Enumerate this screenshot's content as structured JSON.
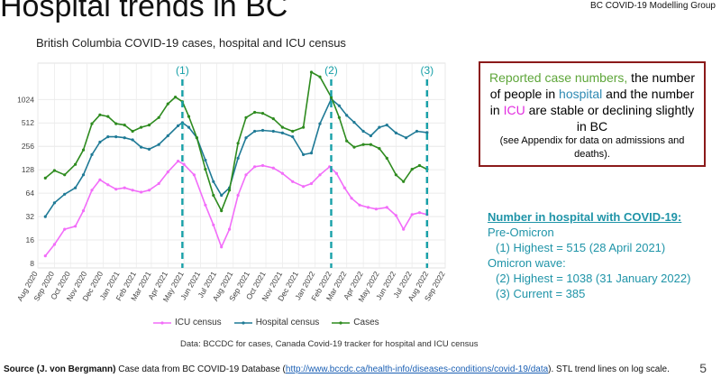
{
  "slide": {
    "title": "Hospital trends in BC",
    "group": "BC COVID-19 Modelling Group",
    "page_number": "5"
  },
  "callout": {
    "green": "Reported case numbers,",
    "t1": " the number of people in ",
    "blue": "hospital",
    "t2": " and the number in ",
    "pink": "ICU",
    "t3": " are stable or declining slightly in BC",
    "small": "(see Appendix for data on admissions and deaths).",
    "colors": {
      "green": "#5ea63a",
      "blue": "#2f8ab3",
      "pink": "#e22ee0",
      "border": "#8b1a1a"
    }
  },
  "hospital_box": {
    "heading": "Number in hospital with COVID-19:",
    "l1": "Pre-Omicron",
    "l2": "(1) Highest = 515 (28 April 2021)",
    "l3": "Omicron wave:",
    "l4": "(2) Highest = 1038 (31 January 2022)",
    "l5": "(3) Current = 385"
  },
  "caption": "Data: BCCDC for cases, Canada Covid-19 tracker for hospital and ICU census",
  "source": {
    "bold": "Source (J. von Bergmann)",
    "pre": " Case data from BC COVID-19 Database (",
    "link": "http://www.bccdc.ca/health-info/diseases-conditions/covid-19/data",
    "post": "). STL trend lines on log scale."
  },
  "chart_data": {
    "type": "line",
    "title": "British Columbia COVID-19 cases, hospital and ICU census",
    "y_scale": "log2",
    "y_ticks": [
      8,
      16,
      32,
      64,
      128,
      256,
      512,
      1024
    ],
    "ylim": [
      7,
      3000
    ],
    "x_labels": [
      "Aug 2020",
      "Sep 2020",
      "Oct 2020",
      "Nov 2020",
      "Dec 2020",
      "Jan 2021",
      "Feb 2021",
      "Mar 2021",
      "Apr 2021",
      "May 2021",
      "Jun 2021",
      "Jul 2021",
      "Aug 2021",
      "Sep 2021",
      "Oct 2021",
      "Nov 2021",
      "Dec 2021",
      "Jan 2022",
      "Feb 2022",
      "Mar 2022",
      "Apr 2022",
      "May 2022",
      "Jun 2022",
      "Jul 2022",
      "Aug 2022",
      "Sep 2022"
    ],
    "grid": true,
    "legend_position": "bottom",
    "markers": [
      {
        "label": "(1)",
        "date": "2021-04-28"
      },
      {
        "label": "(2)",
        "date": "2022-01-31"
      },
      {
        "label": "(3)",
        "date": "2022-07-29"
      }
    ],
    "series": [
      {
        "name": "ICU census",
        "color": "#f26df9",
        "values": [
          [
            "2020-08-15",
            10
          ],
          [
            "2020-09-01",
            14
          ],
          [
            "2020-09-20",
            22
          ],
          [
            "2020-10-10",
            24
          ],
          [
            "2020-10-25",
            38
          ],
          [
            "2020-11-10",
            70
          ],
          [
            "2020-11-25",
            95
          ],
          [
            "2020-12-10",
            82
          ],
          [
            "2020-12-25",
            72
          ],
          [
            "2021-01-10",
            75
          ],
          [
            "2021-01-25",
            70
          ],
          [
            "2021-02-10",
            66
          ],
          [
            "2021-02-25",
            70
          ],
          [
            "2021-03-15",
            85
          ],
          [
            "2021-04-01",
            120
          ],
          [
            "2021-04-20",
            165
          ],
          [
            "2021-05-01",
            150
          ],
          [
            "2021-05-20",
            110
          ],
          [
            "2021-06-10",
            45
          ],
          [
            "2021-06-25",
            25
          ],
          [
            "2021-07-10",
            13
          ],
          [
            "2021-07-25",
            22
          ],
          [
            "2021-08-10",
            60
          ],
          [
            "2021-08-25",
            110
          ],
          [
            "2021-09-10",
            140
          ],
          [
            "2021-09-25",
            145
          ],
          [
            "2021-10-15",
            135
          ],
          [
            "2021-11-01",
            115
          ],
          [
            "2021-11-20",
            90
          ],
          [
            "2021-12-10",
            78
          ],
          [
            "2021-12-25",
            85
          ],
          [
            "2022-01-10",
            110
          ],
          [
            "2022-01-28",
            140
          ],
          [
            "2022-02-10",
            115
          ],
          [
            "2022-02-25",
            75
          ],
          [
            "2022-03-10",
            55
          ],
          [
            "2022-03-25",
            45
          ],
          [
            "2022-04-10",
            42
          ],
          [
            "2022-04-25",
            40
          ],
          [
            "2022-05-15",
            42
          ],
          [
            "2022-06-01",
            33
          ],
          [
            "2022-06-15",
            22
          ],
          [
            "2022-07-01",
            34
          ],
          [
            "2022-07-15",
            36
          ],
          [
            "2022-07-29",
            34
          ]
        ]
      },
      {
        "name": "Hospital census",
        "color": "#1f7a96",
        "values": [
          [
            "2020-08-15",
            32
          ],
          [
            "2020-09-01",
            48
          ],
          [
            "2020-09-20",
            62
          ],
          [
            "2020-10-10",
            75
          ],
          [
            "2020-10-25",
            110
          ],
          [
            "2020-11-10",
            200
          ],
          [
            "2020-11-25",
            290
          ],
          [
            "2020-12-10",
            340
          ],
          [
            "2020-12-25",
            340
          ],
          [
            "2021-01-10",
            330
          ],
          [
            "2021-01-25",
            310
          ],
          [
            "2021-02-10",
            250
          ],
          [
            "2021-02-25",
            235
          ],
          [
            "2021-03-15",
            270
          ],
          [
            "2021-04-01",
            350
          ],
          [
            "2021-04-20",
            470
          ],
          [
            "2021-04-28",
            515
          ],
          [
            "2021-05-10",
            450
          ],
          [
            "2021-05-25",
            330
          ],
          [
            "2021-06-10",
            170
          ],
          [
            "2021-06-25",
            90
          ],
          [
            "2021-07-10",
            60
          ],
          [
            "2021-07-25",
            75
          ],
          [
            "2021-08-10",
            180
          ],
          [
            "2021-08-25",
            330
          ],
          [
            "2021-09-10",
            400
          ],
          [
            "2021-09-25",
            410
          ],
          [
            "2021-10-15",
            400
          ],
          [
            "2021-11-01",
            380
          ],
          [
            "2021-11-20",
            340
          ],
          [
            "2021-12-10",
            200
          ],
          [
            "2021-12-25",
            210
          ],
          [
            "2022-01-10",
            500
          ],
          [
            "2022-01-31",
            1038
          ],
          [
            "2022-02-15",
            850
          ],
          [
            "2022-03-01",
            640
          ],
          [
            "2022-03-15",
            520
          ],
          [
            "2022-04-01",
            400
          ],
          [
            "2022-04-15",
            350
          ],
          [
            "2022-05-01",
            450
          ],
          [
            "2022-05-15",
            480
          ],
          [
            "2022-06-01",
            380
          ],
          [
            "2022-06-20",
            330
          ],
          [
            "2022-07-10",
            400
          ],
          [
            "2022-07-29",
            385
          ]
        ]
      },
      {
        "name": "Cases",
        "color": "#2e8b1f",
        "values": [
          [
            "2020-08-15",
            100
          ],
          [
            "2020-09-01",
            125
          ],
          [
            "2020-09-20",
            110
          ],
          [
            "2020-10-10",
            150
          ],
          [
            "2020-10-25",
            230
          ],
          [
            "2020-11-10",
            500
          ],
          [
            "2020-11-25",
            650
          ],
          [
            "2020-12-10",
            620
          ],
          [
            "2020-12-25",
            500
          ],
          [
            "2021-01-10",
            480
          ],
          [
            "2021-01-25",
            400
          ],
          [
            "2021-02-10",
            450
          ],
          [
            "2021-02-25",
            480
          ],
          [
            "2021-03-15",
            600
          ],
          [
            "2021-04-01",
            900
          ],
          [
            "2021-04-15",
            1100
          ],
          [
            "2021-04-28",
            960
          ],
          [
            "2021-05-10",
            620
          ],
          [
            "2021-05-25",
            330
          ],
          [
            "2021-06-10",
            130
          ],
          [
            "2021-06-25",
            60
          ],
          [
            "2021-07-10",
            38
          ],
          [
            "2021-07-25",
            70
          ],
          [
            "2021-08-10",
            280
          ],
          [
            "2021-08-25",
            600
          ],
          [
            "2021-09-10",
            700
          ],
          [
            "2021-09-25",
            680
          ],
          [
            "2021-10-15",
            580
          ],
          [
            "2021-11-01",
            450
          ],
          [
            "2021-11-20",
            400
          ],
          [
            "2021-12-10",
            450
          ],
          [
            "2021-12-25",
            2300
          ],
          [
            "2022-01-10",
            2000
          ],
          [
            "2022-01-31",
            1100
          ],
          [
            "2022-02-15",
            600
          ],
          [
            "2022-03-01",
            300
          ],
          [
            "2022-03-15",
            250
          ],
          [
            "2022-04-01",
            270
          ],
          [
            "2022-04-15",
            270
          ],
          [
            "2022-05-01",
            240
          ],
          [
            "2022-05-15",
            180
          ],
          [
            "2022-06-01",
            110
          ],
          [
            "2022-06-15",
            90
          ],
          [
            "2022-07-01",
            130
          ],
          [
            "2022-07-15",
            145
          ],
          [
            "2022-07-29",
            130
          ]
        ]
      }
    ]
  }
}
